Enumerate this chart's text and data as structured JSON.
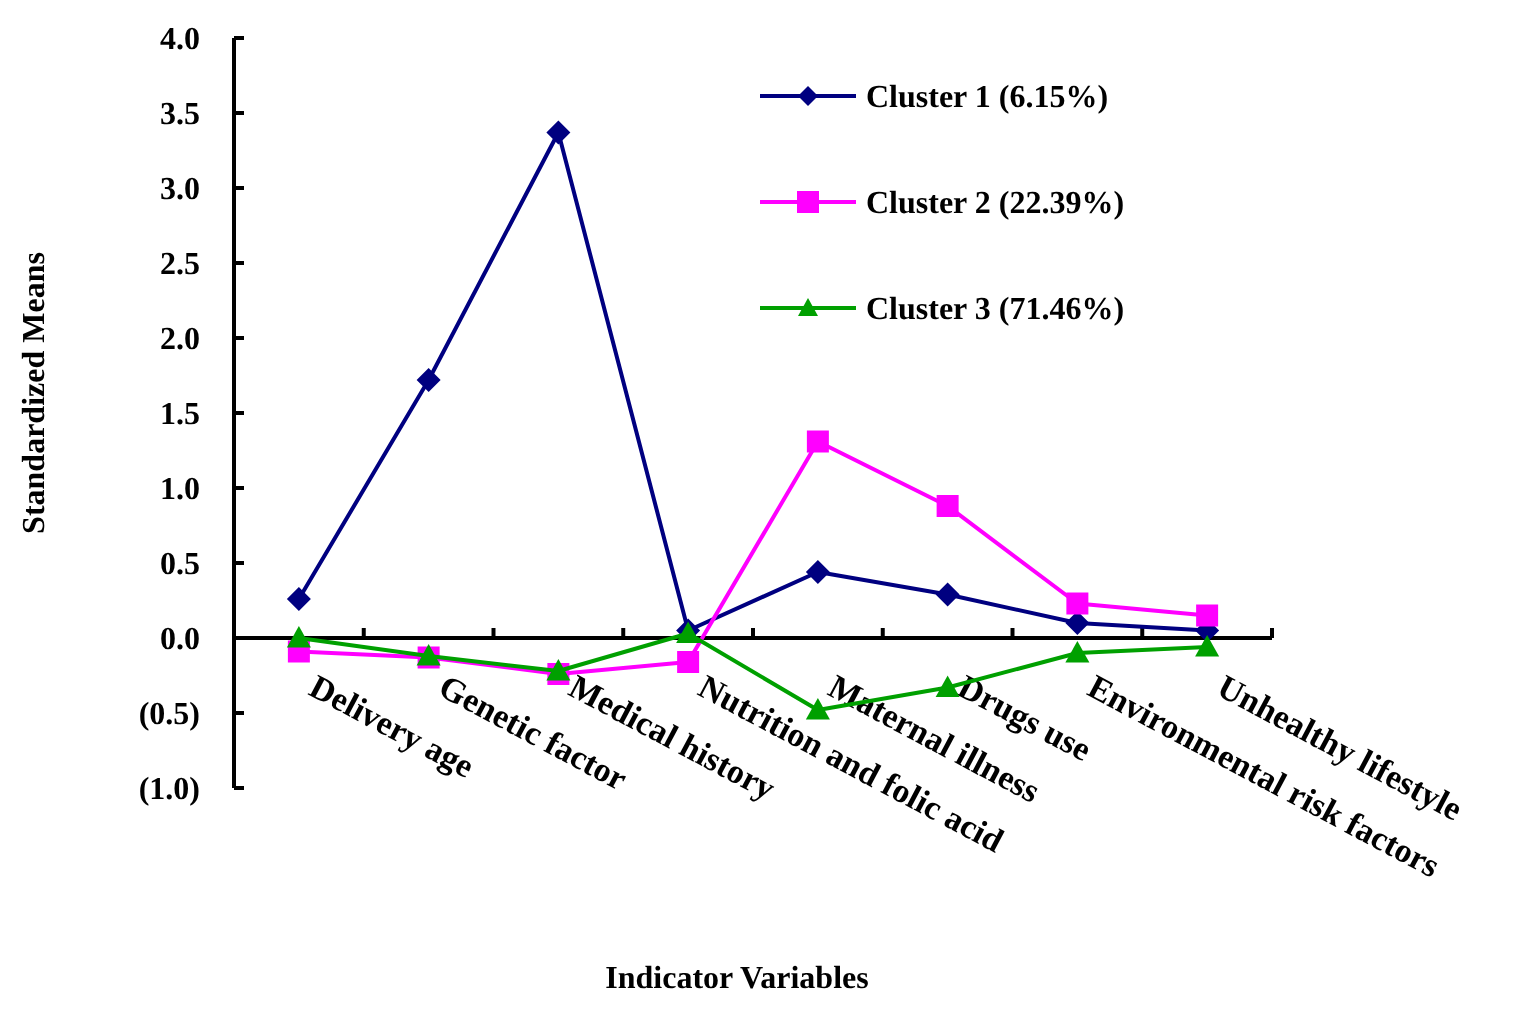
{
  "chart_data": {
    "type": "line",
    "xlabel": "Indicator Variables",
    "ylabel": "Standardized Means",
    "categories": [
      "Delivery age",
      "Genetic factor",
      "Medical history",
      "Nutrition and folic acid",
      "Maternal illness",
      "Drugs use",
      "Environmental risk factors",
      "Unhealthy lifestyle"
    ],
    "series": [
      {
        "name": "Cluster 1 (6.15%)",
        "color": "#000080",
        "marker": "diamond",
        "values": [
          0.26,
          1.72,
          3.37,
          0.05,
          0.44,
          0.29,
          0.1,
          0.05
        ]
      },
      {
        "name": "Cluster 2 (22.39%)",
        "color": "#ff00ff",
        "marker": "square",
        "values": [
          -0.09,
          -0.13,
          -0.24,
          -0.16,
          1.31,
          0.88,
          0.23,
          0.15
        ]
      },
      {
        "name": "Cluster 3 (71.46%)",
        "color": "#00a000",
        "marker": "triangle",
        "values": [
          0.0,
          -0.12,
          -0.22,
          0.03,
          -0.48,
          -0.33,
          -0.1,
          -0.06
        ]
      }
    ],
    "ylim": [
      -1,
      4
    ],
    "yticks": [
      {
        "value": -1,
        "label": "(1.0)"
      },
      {
        "value": -0.5,
        "label": "(0.5)"
      },
      {
        "value": 0,
        "label": "0.0"
      },
      {
        "value": 0.5,
        "label": "0.5"
      },
      {
        "value": 1,
        "label": "1.0"
      },
      {
        "value": 1.5,
        "label": "1.5"
      },
      {
        "value": 2,
        "label": "2.0"
      },
      {
        "value": 2.5,
        "label": "2.5"
      },
      {
        "value": 3,
        "label": "3.0"
      },
      {
        "value": 3.5,
        "label": "3.5"
      },
      {
        "value": 4,
        "label": "4.0"
      }
    ],
    "grid": false,
    "legend": "top right",
    "line_style": "solid"
  }
}
